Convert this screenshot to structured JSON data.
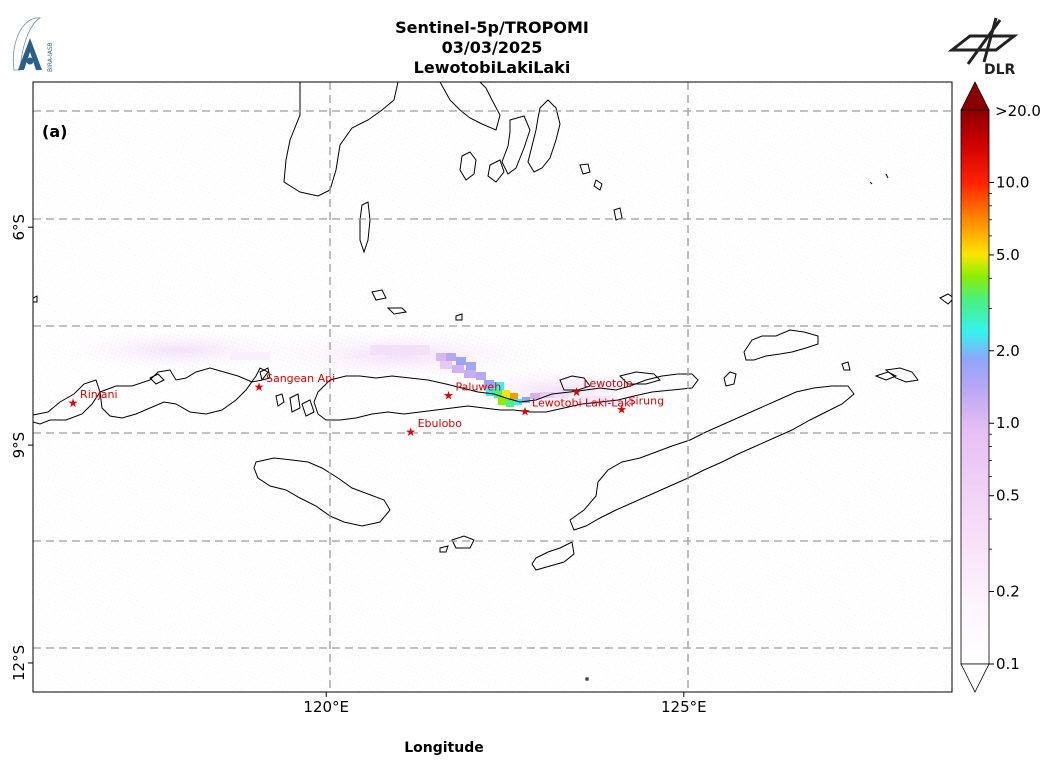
{
  "title": {
    "line1": "Sentinel-5p/TROPOMI",
    "line2": "03/03/2025",
    "line3": "LewotobiLakiLaki"
  },
  "panel_label": "(a)",
  "xlabel": "Longitude",
  "x_ticks": [
    {
      "lon": 120,
      "label": "120°E"
    },
    {
      "lon": 125,
      "label": "125°E"
    }
  ],
  "y_ticks": [
    {
      "lat": -6,
      "label": "6°S"
    },
    {
      "lat": -9,
      "label": "9°S"
    },
    {
      "lat": -12,
      "label": "12°S"
    }
  ],
  "map_extent": {
    "lon_min": 115.9,
    "lon_max": 128.75,
    "lat_min": -12.4,
    "lat_max": -4.0
  },
  "gridlines": {
    "lon": [
      120,
      125
    ],
    "lat": [
      -4.8,
      -6,
      -7.5,
      -9,
      -10.5,
      -12
    ]
  },
  "colorbar": {
    "ticks": [
      {
        "value": 0.1,
        "label": "0.1"
      },
      {
        "value": 0.2,
        "label": "0.2"
      },
      {
        "value": 0.5,
        "label": "0.5"
      },
      {
        "value": 1.0,
        "label": "1.0"
      },
      {
        "value": 2.0,
        "label": "2.0"
      },
      {
        "value": 5.0,
        "label": "5.0"
      },
      {
        "value": 10.0,
        "label": "10.0"
      }
    ],
    "max_label": ">20.0",
    "min": 0.1,
    "max": 20.0,
    "colors": [
      "#ffffff",
      "#fbeefb",
      "#eeccf4",
      "#d2aaf0",
      "#9fa0f8",
      "#3ef0ea",
      "#4cf080",
      "#88ee00",
      "#ffe400",
      "#ff7f00",
      "#ff1a00",
      "#cc0000",
      "#880000"
    ],
    "scale": "log"
  },
  "volcanoes": [
    {
      "name": "Rinjani",
      "lon": 116.46,
      "lat": -8.42
    },
    {
      "name": "Sangean Api",
      "lon": 119.06,
      "lat": -8.2
    },
    {
      "name": "Paluweh",
      "lon": 121.71,
      "lat": -8.32
    },
    {
      "name": "Ebulobo",
      "lon": 121.18,
      "lat": -8.82
    },
    {
      "name": "Lewotolo",
      "lon": 123.5,
      "lat": -8.27
    },
    {
      "name": "Lewotobi Laki-Laki",
      "lon": 122.78,
      "lat": -8.54
    },
    {
      "name": "Sirung",
      "lon": 124.13,
      "lat": -8.51
    }
  ],
  "logos": {
    "left": "BIRA-IASB",
    "right": "DLR"
  }
}
